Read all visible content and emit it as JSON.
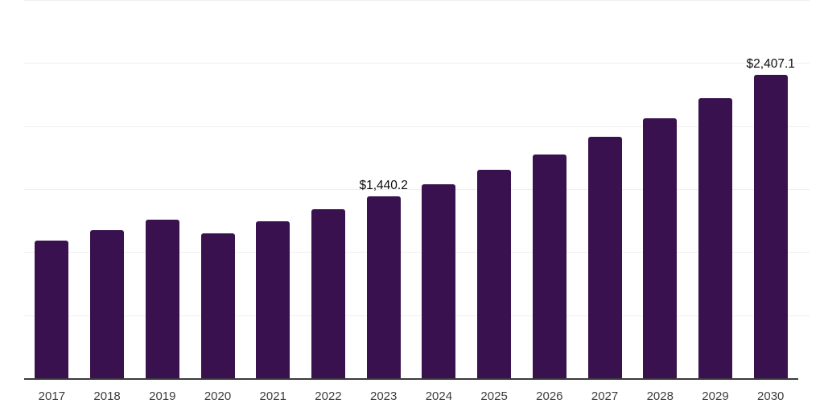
{
  "chart_data": {
    "type": "bar",
    "title": "",
    "xlabel": "",
    "ylabel": "",
    "categories": [
      "2017",
      "2018",
      "2019",
      "2020",
      "2021",
      "2022",
      "2023",
      "2024",
      "2025",
      "2026",
      "2027",
      "2028",
      "2029",
      "2030"
    ],
    "values": [
      1090,
      1174,
      1257,
      1151,
      1246,
      1338,
      1440.2,
      1537,
      1652,
      1773,
      1915,
      2060,
      2223,
      2407.1
    ],
    "value_labels": {
      "2023": "$1,440.2",
      "2030": "$2,407.1"
    },
    "ylim": [
      0,
      3000
    ],
    "gridline_step": 500,
    "grid_on": true,
    "legend": "none",
    "colors": {
      "bar": "#38114e",
      "axis": "#3b3b3b",
      "gridline": "#efefef",
      "tick_label": "#3d3d3d",
      "value_label": "#0b0b0b"
    }
  }
}
